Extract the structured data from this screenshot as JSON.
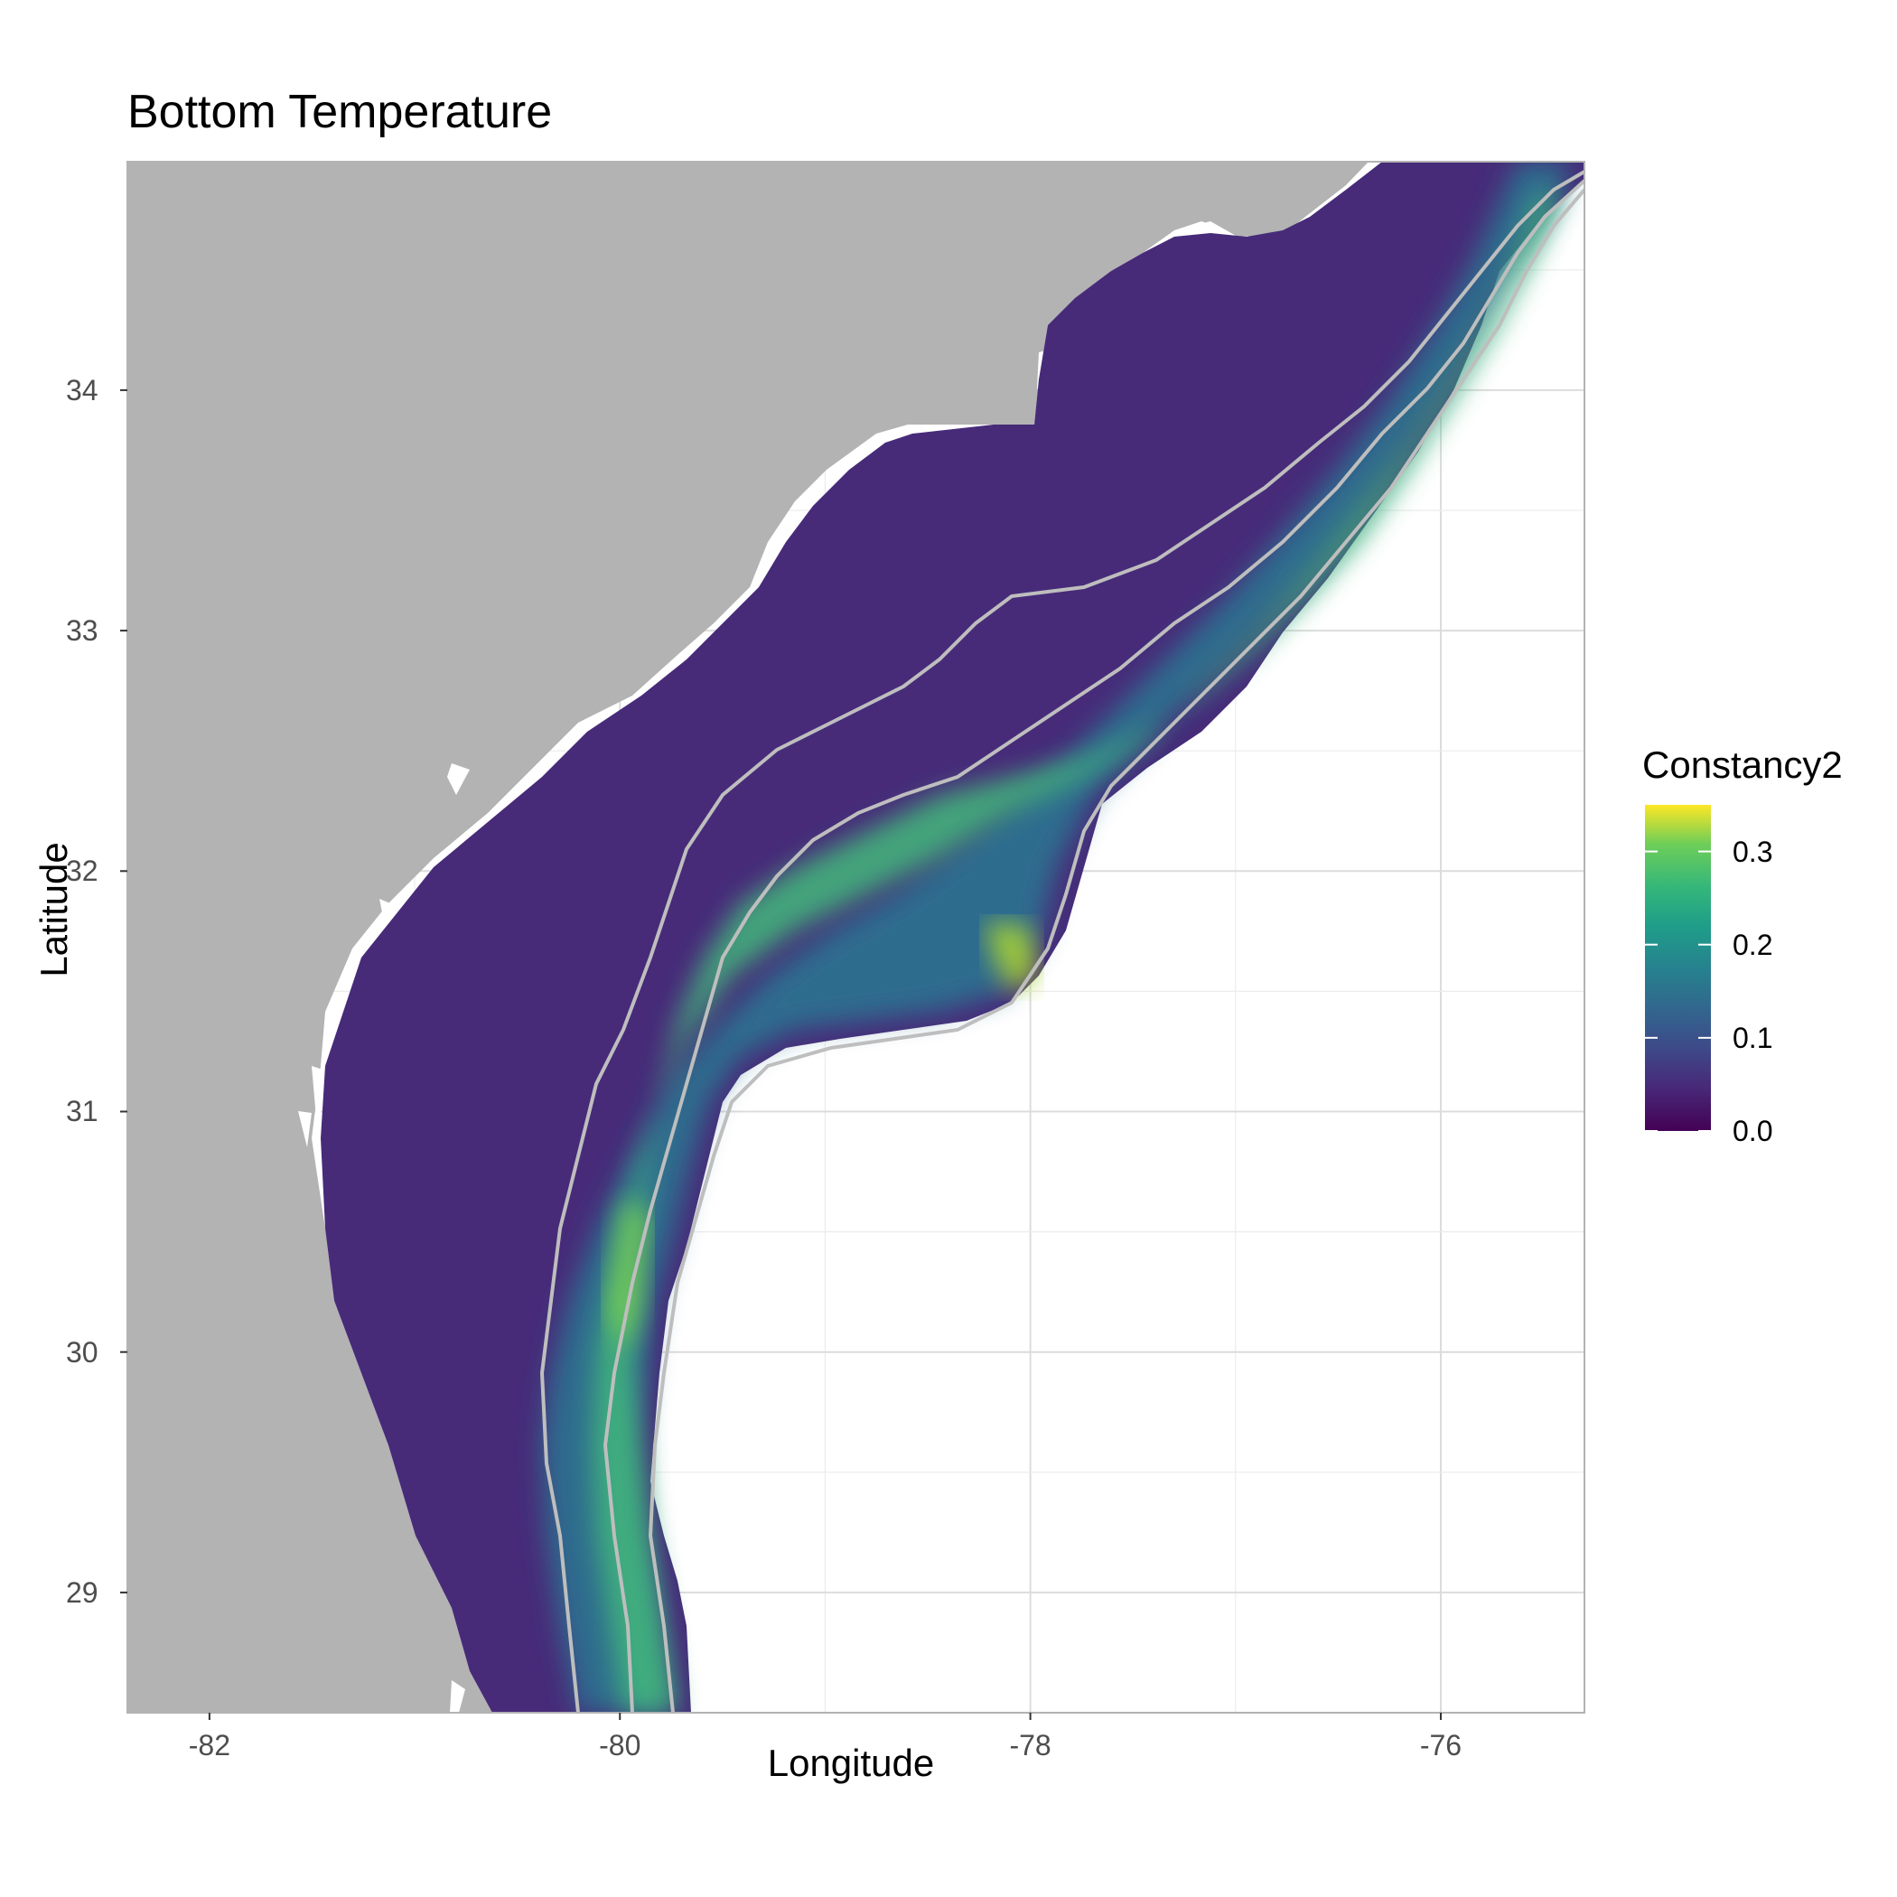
{
  "title": "Bottom Temperature",
  "x_axis": {
    "label": "Longitude",
    "ticks": [
      "-82",
      "-80",
      "-78",
      "-76"
    ],
    "tick_values": [
      -82,
      -80,
      -78,
      -76
    ],
    "range": [
      -82.4,
      -75.3
    ]
  },
  "y_axis": {
    "label": "Latitude",
    "ticks": [
      "29",
      "30",
      "31",
      "32",
      "33",
      "34"
    ],
    "tick_values": [
      29,
      30,
      31,
      32,
      33,
      34
    ],
    "range": [
      28.5,
      34.95
    ]
  },
  "legend": {
    "title": "Constancy2",
    "labels": [
      "0.0",
      "0.1",
      "0.2",
      "0.3"
    ],
    "values": [
      0.0,
      0.1,
      0.2,
      0.3
    ],
    "max": 0.35,
    "palette": "viridis"
  },
  "colors": {
    "land": "#b3b3b3",
    "contour": "#bebebe",
    "grid": "#e0e0e0",
    "panel_border": "#b3b3b3"
  }
}
